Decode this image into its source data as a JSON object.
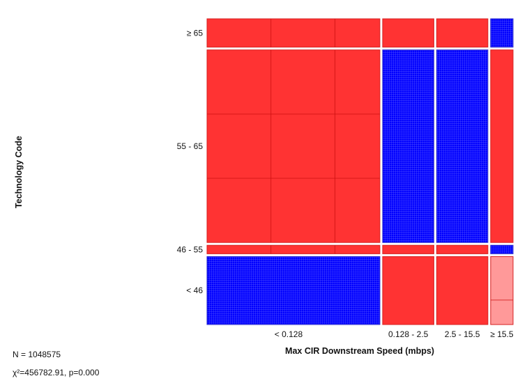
{
  "chart_data": {
    "type": "mosaic",
    "title": "",
    "xlabel": "Max CIR Downstream Speed (mbps)",
    "ylabel": "Technology Code",
    "x_categories": [
      "< 0.128",
      "0.128 - 2.5",
      "2.5 - 15.5",
      "≥ 15.5"
    ],
    "y_categories": [
      "≥ 65",
      "55 - 65",
      "46 - 55",
      "< 46"
    ],
    "x_widths": [
      0.54,
      0.16,
      0.16,
      0.07
    ],
    "column_segments": [
      [
        0.1,
        0.68,
        0.03,
        0.24
      ],
      [
        0.1,
        0.68,
        0.03,
        0.24
      ],
      [
        0.1,
        0.68,
        0.03,
        0.24
      ],
      [
        0.1,
        0.68,
        0.03,
        0.24
      ]
    ],
    "residual_sign": [
      [
        "pos",
        "pos",
        "pos",
        "neg"
      ],
      [
        "pos",
        "neg",
        "neg",
        "pos"
      ],
      [
        "pos",
        "pos",
        "pos",
        "neg"
      ],
      [
        "neg",
        "pos",
        "pos",
        "pos_light"
      ]
    ],
    "colors": {
      "pos": "#ff3333",
      "pos_light": "#ff9999",
      "neg": "#0000ff",
      "grid_neg": "#4d4dff",
      "grid_pos": "#cc0000"
    }
  },
  "stats": {
    "n": "N = 1048575",
    "chi": "χ²=456782.91, p=0.000"
  }
}
